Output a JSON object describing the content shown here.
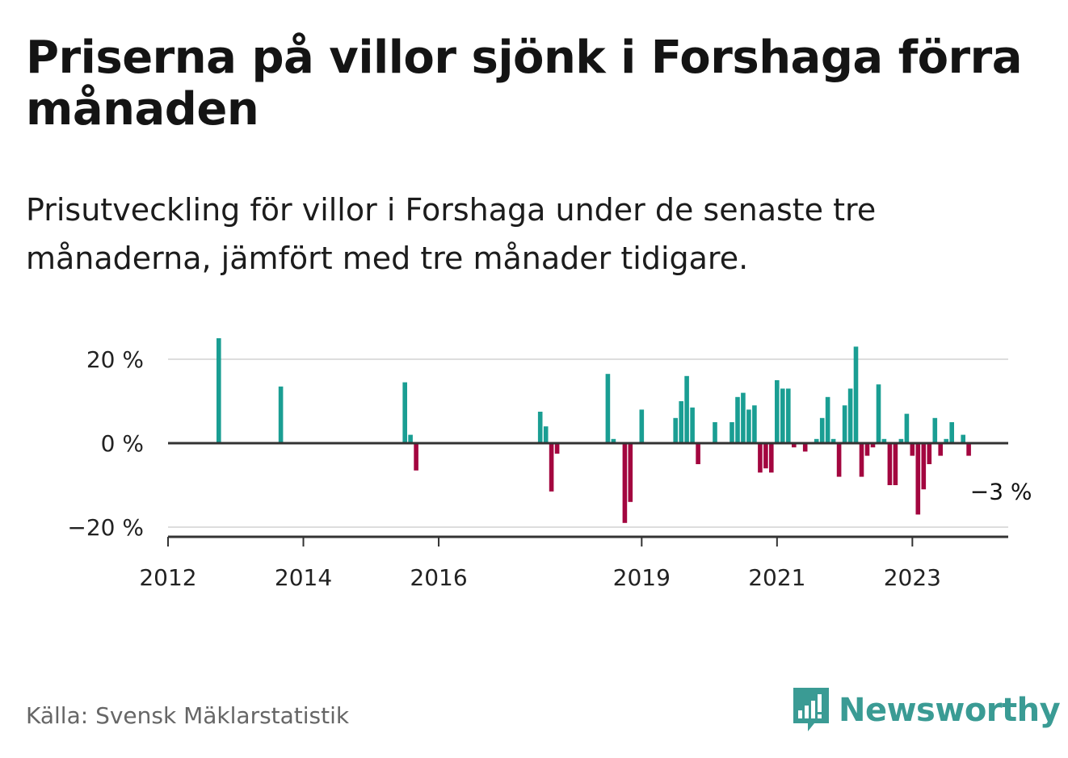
{
  "header": {
    "title": "Priserna på villor sjönk i Forshaga förra månaden",
    "subtitle": "Prisutveckling för villor i Forshaga under de senaste tre månaderna, jämfört med tre månader tidigare."
  },
  "footer": {
    "source": "Källa: Svensk Mäklarstatistik",
    "brand": "Newsworthy",
    "brand_icon": "bar-chart-speech-bubble-icon"
  },
  "colors": {
    "positive": "#1a9e93",
    "negative": "#a3063f",
    "axis": "#333333",
    "grid": "#dddddd",
    "brand": "#3a9b94"
  },
  "chart_data": {
    "type": "bar",
    "title": "",
    "xlabel": "",
    "ylabel": "",
    "ylim": [
      -22,
      27
    ],
    "xlim": [
      "2012-01",
      "2024-06"
    ],
    "y_ticks": [
      20,
      0,
      -20
    ],
    "y_tick_labels": [
      "20 %",
      "0 %",
      "−20 %"
    ],
    "x_ticks": [
      "2012-01",
      "2014-01",
      "2016-01",
      "2019-01",
      "2021-01",
      "2023-01"
    ],
    "x_tick_labels": [
      "2012",
      "2014",
      "2016",
      "2019",
      "2021",
      "2023"
    ],
    "grid": true,
    "annotation": {
      "label": "−3 %",
      "target": "2023-11"
    },
    "series": [
      {
        "points": [
          {
            "x": "2012-10",
            "y": 25
          },
          {
            "x": "2013-09",
            "y": 13.5
          },
          {
            "x": "2015-07",
            "y": 14.5
          },
          {
            "x": "2015-08",
            "y": 2
          },
          {
            "x": "2015-09",
            "y": -6.5
          },
          {
            "x": "2017-07",
            "y": 7.5
          },
          {
            "x": "2017-08",
            "y": 4
          },
          {
            "x": "2017-09",
            "y": -11.5
          },
          {
            "x": "2017-10",
            "y": -2.5
          },
          {
            "x": "2018-07",
            "y": 16.5
          },
          {
            "x": "2018-08",
            "y": 1
          },
          {
            "x": "2018-10",
            "y": -19
          },
          {
            "x": "2018-11",
            "y": -14
          },
          {
            "x": "2019-01",
            "y": 8
          },
          {
            "x": "2019-07",
            "y": 6
          },
          {
            "x": "2019-08",
            "y": 10
          },
          {
            "x": "2019-09",
            "y": 16
          },
          {
            "x": "2019-10",
            "y": 8.5
          },
          {
            "x": "2019-11",
            "y": -5
          },
          {
            "x": "2020-02",
            "y": 5
          },
          {
            "x": "2020-05",
            "y": 5
          },
          {
            "x": "2020-06",
            "y": 11
          },
          {
            "x": "2020-07",
            "y": 12
          },
          {
            "x": "2020-08",
            "y": 8
          },
          {
            "x": "2020-09",
            "y": 9
          },
          {
            "x": "2020-10",
            "y": -7
          },
          {
            "x": "2020-11",
            "y": -6
          },
          {
            "x": "2020-12",
            "y": -7
          },
          {
            "x": "2021-01",
            "y": 15
          },
          {
            "x": "2021-02",
            "y": 13
          },
          {
            "x": "2021-03",
            "y": 13
          },
          {
            "x": "2021-04",
            "y": -1
          },
          {
            "x": "2021-06",
            "y": -2
          },
          {
            "x": "2021-08",
            "y": 1
          },
          {
            "x": "2021-09",
            "y": 6
          },
          {
            "x": "2021-10",
            "y": 11
          },
          {
            "x": "2021-11",
            "y": 1
          },
          {
            "x": "2021-12",
            "y": -8
          },
          {
            "x": "2022-01",
            "y": 9
          },
          {
            "x": "2022-02",
            "y": 13
          },
          {
            "x": "2022-03",
            "y": 23
          },
          {
            "x": "2022-04",
            "y": -8
          },
          {
            "x": "2022-05",
            "y": -3
          },
          {
            "x": "2022-06",
            "y": -1
          },
          {
            "x": "2022-07",
            "y": 14
          },
          {
            "x": "2022-08",
            "y": 1
          },
          {
            "x": "2022-09",
            "y": -10
          },
          {
            "x": "2022-10",
            "y": -10
          },
          {
            "x": "2022-11",
            "y": 1
          },
          {
            "x": "2022-12",
            "y": 7
          },
          {
            "x": "2023-01",
            "y": -3
          },
          {
            "x": "2023-02",
            "y": -17
          },
          {
            "x": "2023-03",
            "y": -11
          },
          {
            "x": "2023-04",
            "y": -5
          },
          {
            "x": "2023-05",
            "y": 6
          },
          {
            "x": "2023-06",
            "y": -3
          },
          {
            "x": "2023-07",
            "y": 1
          },
          {
            "x": "2023-08",
            "y": 5
          },
          {
            "x": "2023-09",
            "y": 0
          },
          {
            "x": "2023-10",
            "y": 2
          },
          {
            "x": "2023-11",
            "y": -3
          }
        ]
      }
    ]
  }
}
